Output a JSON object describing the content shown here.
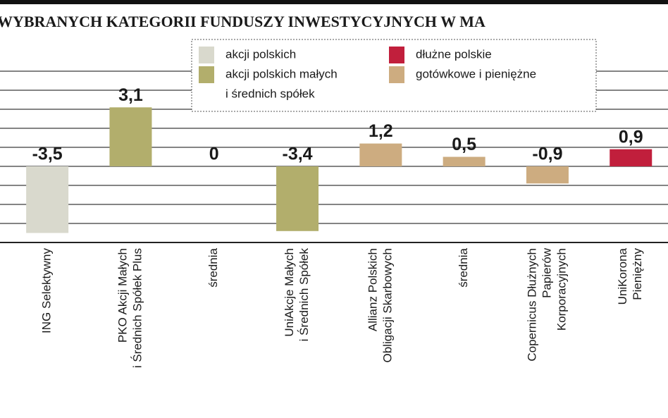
{
  "chart_data": {
    "type": "bar",
    "title": "WYBRANYCH KATEGORII FUNDUSZY INWESTYCYJNYCH W MA",
    "categories": [
      [
        "ING Selektywny"
      ],
      [
        "PKO Akcji Małych",
        "i Średnich Spółek Plus"
      ],
      [
        "średnia"
      ],
      [
        "UniAkcje Małych",
        "i Średnich Spółek"
      ],
      [
        "Allianz Polskich",
        "Obligacji Skarbowych"
      ],
      [
        "średnia"
      ],
      [
        "Copernicus Dłużnych",
        "Papierów",
        "Korporacyjnych"
      ],
      [
        "UniKorona",
        "Pieniężny"
      ]
    ],
    "values": [
      -3.5,
      3.1,
      0,
      -3.4,
      1.2,
      0.5,
      -0.9,
      0.9
    ],
    "value_labels": [
      "-3,5",
      "3,1",
      "0",
      "-3,4",
      "1,2",
      "0,5",
      "-0,9",
      "0,9"
    ],
    "colors": [
      "#d9d9cd",
      "#b2ae6c",
      "#b2ae6c",
      "#b2ae6c",
      "#cdac80",
      "#cdac80",
      "#cdac80",
      "#c11f3c"
    ],
    "ylim": [
      -4,
      6
    ],
    "gridlines": [
      -3,
      -2,
      -1,
      0,
      1,
      2,
      3,
      4,
      5
    ],
    "legend": [
      {
        "lines": [
          "akcji polskich"
        ],
        "color": "#d9d9cd"
      },
      {
        "lines": [
          "akcji polskich małych",
          "i średnich spółek"
        ],
        "color": "#b2ae6c"
      },
      {
        "lines": [
          "dłużne polskie"
        ],
        "color": "#c11f3c"
      },
      {
        "lines": [
          "gotówkowe i pieniężne"
        ],
        "color": "#cdac80"
      }
    ]
  }
}
